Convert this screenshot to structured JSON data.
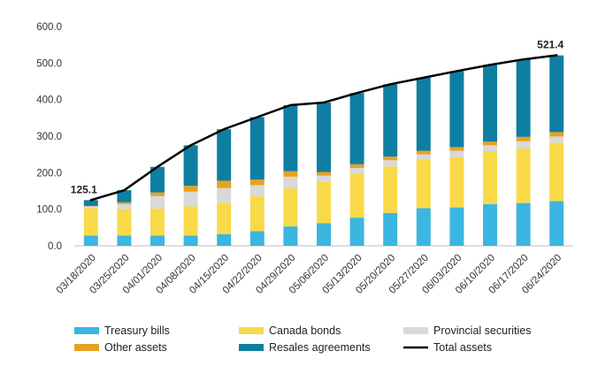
{
  "chart_data": {
    "type": "bar",
    "stacked": true,
    "categories": [
      "03/18/2020",
      "03/25/2020",
      "04/01/2020",
      "04/08/2020",
      "04/15/2020",
      "04/22/2020",
      "04/29/2020",
      "05/06/2020",
      "05/13/2020",
      "05/20/2020",
      "05/27/2020",
      "06/03/2020",
      "06/10/2020",
      "06/17/2020",
      "06/24/2020"
    ],
    "series": [
      {
        "name": "Treasury bills",
        "color": "#3bb6e0",
        "values": [
          28,
          28,
          28,
          28,
          32,
          40,
          53,
          62,
          77,
          90,
          103,
          105,
          114,
          117,
          122
        ]
      },
      {
        "name": "Canada bonds",
        "color": "#f9d948",
        "values": [
          75,
          72,
          74,
          80,
          86,
          96,
          104,
          114,
          120,
          127,
          133,
          137,
          145,
          150,
          160
        ]
      },
      {
        "name": "Provincial securities",
        "color": "#d9d9d9",
        "values": [
          5,
          14,
          34,
          40,
          40,
          30,
          32,
          16,
          16,
          17,
          14,
          18,
          16,
          19,
          17
        ]
      },
      {
        "name": "Other assets",
        "color": "#e8a21f",
        "values": [
          1,
          5,
          10,
          16,
          20,
          15,
          15,
          10,
          10,
          10,
          10,
          10,
          10,
          12,
          12
        ]
      },
      {
        "name": "Resales agreements",
        "color": "#0e7fa3",
        "values": [
          16,
          33,
          70,
          111,
          141,
          171,
          181,
          190,
          195,
          198,
          200,
          208,
          210,
          212,
          210
        ]
      }
    ],
    "line": {
      "name": "Total assets",
      "color": "#000000",
      "values": [
        125.1,
        152,
        216,
        275,
        319,
        352,
        385,
        392,
        418,
        442,
        460,
        478,
        495,
        510,
        521.4
      ]
    },
    "annotations": [
      {
        "label": "125.1",
        "category_index": 0,
        "value": 125.1
      },
      {
        "label": "521.4",
        "category_index": 14,
        "value": 521.4
      }
    ],
    "yticks": [
      "0.0",
      "100.0",
      "200.0",
      "300.0",
      "400.0",
      "500.0",
      "600.0"
    ],
    "ylim": [
      0,
      600
    ],
    "grid": false,
    "legend": "bottom",
    "title": "",
    "xlabel": "",
    "ylabel": ""
  }
}
